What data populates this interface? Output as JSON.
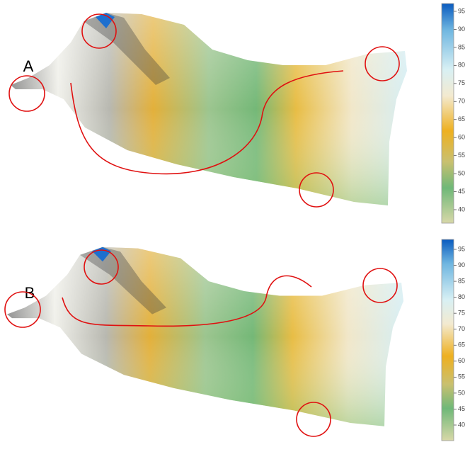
{
  "panels": [
    {
      "label": "A",
      "colorbar": {
        "ticks": [
          95,
          90,
          85,
          80,
          75,
          70,
          65,
          60,
          55,
          50,
          45,
          40
        ]
      }
    },
    {
      "label": "B",
      "colorbar": {
        "ticks": [
          95,
          90,
          85,
          80,
          75,
          70,
          65,
          60,
          55,
          50,
          45,
          40
        ]
      }
    }
  ]
}
